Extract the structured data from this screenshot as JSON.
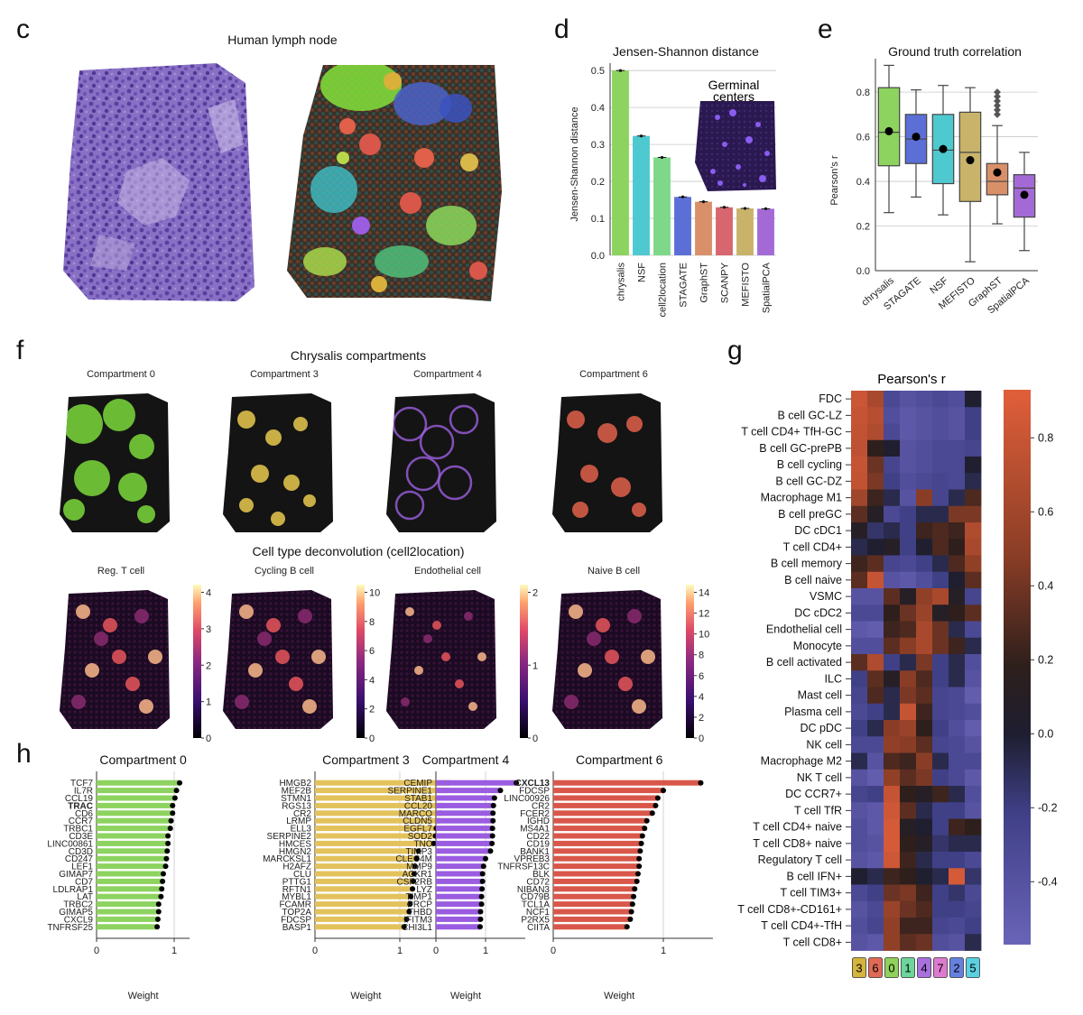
{
  "panels": {
    "c": "c",
    "d": "d",
    "e": "e",
    "f": "f",
    "g": "g",
    "h": "h"
  },
  "panel_c": {
    "title": "Human lymph node"
  },
  "colors": {
    "green": "#8dd35f",
    "blue": "#5b6fd6",
    "teal": "#4ec9cf",
    "ltgreen": "#7fd88a",
    "orange": "#d99068",
    "red": "#d8666f",
    "olive": "#c9b36a",
    "purple": "#a36ad6",
    "gold": "#e3c25c",
    "redbar": "#d9574a",
    "violet": "#9a5ce0"
  },
  "chart_data": [
    {
      "id": "d",
      "type": "bar",
      "title": "Jensen-Shannon distance",
      "ylabel": "Jensen-Shannon distance",
      "ylim": [
        0,
        0.52
      ],
      "yticks": [
        "0.0",
        "0.1",
        "0.2",
        "0.3",
        "0.4",
        "0.5"
      ],
      "categories": [
        "chrysalis",
        "NSF",
        "cell2location",
        "STAGATE",
        "GraphST",
        "SCANPY",
        "MEFISTO",
        "SpatialPCA"
      ],
      "values": [
        0.5,
        0.323,
        0.265,
        0.158,
        0.145,
        0.13,
        0.127,
        0.126
      ],
      "inset_label": [
        "Germinal",
        "centers"
      ]
    },
    {
      "id": "e",
      "type": "box",
      "title": "Ground truth correlation",
      "ylabel": "Pearson's r",
      "ylim": [
        0,
        0.95
      ],
      "yticks": [
        "0.0",
        "0.2",
        "0.4",
        "0.6",
        "0.8"
      ],
      "categories": [
        "chrysalis",
        "STAGATE",
        "NSF",
        "MEFISTO",
        "GraphST",
        "SpatialPCA"
      ],
      "boxes": [
        {
          "q1": 0.47,
          "median": 0.62,
          "q3": 0.82,
          "wlo": 0.26,
          "whi": 0.92,
          "mean": 0.625
        },
        {
          "q1": 0.48,
          "median": 0.59,
          "q3": 0.7,
          "wlo": 0.33,
          "whi": 0.81,
          "mean": 0.6
        },
        {
          "q1": 0.39,
          "median": 0.54,
          "q3": 0.7,
          "wlo": 0.25,
          "whi": 0.83,
          "mean": 0.545
        },
        {
          "q1": 0.31,
          "median": 0.53,
          "q3": 0.71,
          "wlo": 0.04,
          "whi": 0.82,
          "mean": 0.495
        },
        {
          "q1": 0.34,
          "median": 0.4,
          "q3": 0.48,
          "wlo": 0.21,
          "whi": 0.65,
          "mean": 0.44,
          "fliers": [
            0.7,
            0.72,
            0.74,
            0.76,
            0.78,
            0.8
          ]
        },
        {
          "q1": 0.24,
          "median": 0.37,
          "q3": 0.43,
          "wlo": 0.09,
          "whi": 0.53,
          "mean": 0.34
        }
      ]
    },
    {
      "id": "g",
      "type": "heatmap",
      "title": "Pearson's r",
      "rows": [
        "FDC",
        "B cell GC-LZ",
        "T cell CD4+ TfH-GC",
        "B cell GC-prePB",
        "B cell cycling",
        "B cell GC-DZ",
        "Macrophage M1",
        "B cell preGC",
        "DC cDC1",
        "T cell CD4+",
        "B cell memory",
        "B cell naive",
        "VSMC",
        "DC cDC2",
        "Endothelial cell",
        "Monocyte",
        "B cell activated",
        "ILC",
        "Mast cell",
        "Plasma cell",
        "DC pDC",
        "NK cell",
        "Macrophage M2",
        "NK T cell",
        "DC CCR7+",
        "T cell TfR",
        "T cell CD4+ naive",
        "T cell CD8+ naive",
        "Regulatory T cell",
        "B cell IFN+",
        "T cell TIM3+",
        "T cell CD8+-CD161+",
        "T cell CD4+-TfH",
        "T cell CD8+"
      ],
      "columns": [
        "3",
        "6",
        "0",
        "1",
        "4",
        "7",
        "2",
        "5"
      ],
      "column_colors": [
        "#d4b43c",
        "#e06a55",
        "#8fd15a",
        "#6cd69a",
        "#a970e0",
        "#de7ad0",
        "#6680e0",
        "#5ad0e0"
      ],
      "values": [
        [
          0.78,
          0.55,
          -0.3,
          -0.4,
          -0.35,
          -0.3,
          -0.35,
          -0.05
        ],
        [
          0.75,
          0.65,
          -0.35,
          -0.45,
          -0.4,
          -0.35,
          -0.4,
          -0.2
        ],
        [
          0.72,
          0.6,
          -0.3,
          -0.45,
          -0.4,
          -0.35,
          -0.4,
          -0.2
        ],
        [
          0.7,
          0.05,
          -0.05,
          -0.4,
          -0.35,
          -0.3,
          -0.3,
          -0.25
        ],
        [
          0.75,
          0.25,
          -0.25,
          -0.4,
          -0.35,
          -0.3,
          -0.3,
          -0.05
        ],
        [
          0.72,
          0.3,
          -0.2,
          -0.35,
          -0.3,
          -0.25,
          -0.3,
          -0.1
        ],
        [
          0.5,
          0.1,
          -0.1,
          -0.4,
          0.35,
          -0.25,
          -0.1,
          0.15
        ],
        [
          0.2,
          0.0,
          -0.3,
          -0.2,
          -0.1,
          -0.1,
          0.3,
          0.3
        ],
        [
          0.0,
          -0.15,
          -0.1,
          -0.2,
          0.1,
          0.15,
          0.1,
          0.6
        ],
        [
          -0.1,
          -0.05,
          0.0,
          -0.2,
          -0.05,
          0.15,
          0.05,
          0.55
        ],
        [
          0.1,
          0.2,
          -0.25,
          -0.3,
          -0.2,
          -0.1,
          0.15,
          0.4
        ],
        [
          0.2,
          0.75,
          -0.4,
          -0.45,
          -0.35,
          -0.2,
          -0.05,
          0.2
        ],
        [
          -0.4,
          -0.4,
          0.2,
          0.0,
          0.4,
          0.55,
          0.0,
          -0.25
        ],
        [
          -0.3,
          -0.3,
          0.05,
          0.25,
          0.45,
          0.0,
          0.05,
          0.2
        ],
        [
          -0.45,
          -0.5,
          0.1,
          0.15,
          0.55,
          0.25,
          -0.1,
          -0.3
        ],
        [
          -0.35,
          -0.35,
          0.2,
          0.35,
          0.55,
          0.25,
          0.1,
          -0.1
        ],
        [
          0.2,
          0.6,
          -0.2,
          -0.1,
          0.3,
          -0.2,
          -0.1,
          -0.35
        ],
        [
          -0.2,
          0.2,
          0.0,
          0.35,
          0.15,
          -0.2,
          -0.1,
          -0.4
        ],
        [
          -0.25,
          0.15,
          -0.1,
          0.3,
          0.2,
          -0.25,
          -0.3,
          -0.5
        ],
        [
          -0.3,
          -0.2,
          -0.1,
          0.75,
          0.1,
          -0.25,
          -0.3,
          -0.35
        ],
        [
          -0.2,
          -0.1,
          0.35,
          0.45,
          0.05,
          -0.2,
          -0.35,
          -0.5
        ],
        [
          -0.3,
          -0.3,
          0.4,
          0.35,
          0.2,
          -0.25,
          -0.3,
          -0.4
        ],
        [
          -0.1,
          -0.4,
          0.15,
          0.1,
          0.35,
          -0.1,
          -0.3,
          -0.3
        ],
        [
          -0.4,
          -0.5,
          0.4,
          0.2,
          0.3,
          -0.2,
          -0.3,
          -0.45
        ],
        [
          -0.25,
          -0.2,
          0.75,
          0.05,
          0.0,
          0.1,
          -0.1,
          -0.35
        ],
        [
          -0.4,
          -0.45,
          0.8,
          0.2,
          -0.1,
          -0.2,
          -0.2,
          -0.4
        ],
        [
          -0.35,
          -0.45,
          0.85,
          0.0,
          -0.05,
          -0.2,
          0.1,
          0.05
        ],
        [
          -0.35,
          -0.4,
          0.85,
          0.05,
          0.0,
          -0.15,
          -0.1,
          -0.1
        ],
        [
          -0.4,
          -0.45,
          0.8,
          0.1,
          -0.1,
          -0.2,
          -0.2,
          -0.3
        ],
        [
          -0.05,
          -0.1,
          0.1,
          0.05,
          -0.05,
          -0.1,
          0.85,
          -0.15
        ],
        [
          -0.3,
          -0.2,
          0.25,
          0.3,
          0.1,
          -0.2,
          -0.15,
          -0.3
        ],
        [
          -0.4,
          -0.3,
          0.45,
          0.25,
          0.15,
          -0.2,
          -0.2,
          -0.25
        ],
        [
          -0.35,
          -0.25,
          0.4,
          0.1,
          0.1,
          -0.25,
          -0.3,
          -0.2
        ],
        [
          -0.4,
          -0.45,
          0.4,
          0.2,
          0.25,
          -0.35,
          -0.4,
          -0.1
        ]
      ],
      "colorbar_ticks": [
        "-0.4",
        "-0.2",
        "0.0",
        "0.2",
        "0.4",
        "0.6",
        "0.8"
      ],
      "vmin": -0.57,
      "vmax": 0.93
    },
    {
      "id": "h0",
      "type": "hbar",
      "title": "Compartment 0",
      "xlabel": "Weight",
      "xticks": [
        "0",
        "1"
      ],
      "xlim": [
        0,
        1.2
      ],
      "color_key": "green",
      "bold": "TRAC",
      "categories": [
        "TCF7",
        "IL7R",
        "CCL19",
        "TRAC",
        "CD6",
        "CCR7",
        "TRBC1",
        "CD3E",
        "LINC00861",
        "CD3D",
        "CD247",
        "LEF1",
        "GIMAP7",
        "CD7",
        "LDLRAP1",
        "LAT",
        "TRBC2",
        "GIMAP5",
        "CXCL9",
        "TNFRSF25"
      ],
      "values": [
        1.07,
        1.03,
        1.01,
        0.98,
        0.98,
        0.96,
        0.95,
        0.92,
        0.92,
        0.91,
        0.9,
        0.89,
        0.86,
        0.85,
        0.84,
        0.83,
        0.8,
        0.8,
        0.79,
        0.78
      ]
    },
    {
      "id": "h3",
      "type": "hbar",
      "title": "Compartment 3",
      "xlabel": "Weight",
      "xticks": [
        "0",
        "1"
      ],
      "xlim": [
        0,
        1.7
      ],
      "color_key": "gold",
      "categories": [
        "HMGB2",
        "MEF2B",
        "STMN1",
        "RGS13",
        "CR2",
        "LRMP",
        "ELL3",
        "SERPINE2",
        "HMCES",
        "HMGN2",
        "MARCKSL1",
        "H2AFZ",
        "CLU",
        "PTTG1",
        "RFTN1",
        "MYBL1",
        "FCAMR",
        "TOP2A",
        "FDCSP",
        "BASP1"
      ],
      "values": [
        1.57,
        1.55,
        1.52,
        1.5,
        1.48,
        1.46,
        1.43,
        1.42,
        1.4,
        1.22,
        1.2,
        1.18,
        1.17,
        1.16,
        1.15,
        1.13,
        1.12,
        1.11,
        1.08,
        1.05
      ]
    },
    {
      "id": "h4",
      "type": "hbar",
      "title": "Compartment 4",
      "xlabel": "Weight",
      "xticks": [
        "0",
        "1"
      ],
      "xlim": [
        0,
        1.8
      ],
      "color_key": "violet",
      "categories": [
        "CEMIP",
        "SERPINE1",
        "STAB1",
        "CCL20",
        "MARCO",
        "CLDN5",
        "EGFL7",
        "SOD2",
        "TNC",
        "TIMP3",
        "CLEC4M",
        "MMP9",
        "ACKR1",
        "CSF2RB",
        "LYZ",
        "TIMP1",
        "PRCP",
        "THBD",
        "IFITM3",
        "CHI3L1"
      ],
      "values": [
        1.62,
        1.3,
        1.18,
        1.16,
        1.15,
        1.15,
        1.14,
        1.14,
        1.13,
        1.1,
        1.0,
        0.96,
        0.94,
        0.94,
        0.93,
        0.92,
        0.92,
        0.9,
        0.9,
        0.89
      ]
    },
    {
      "id": "h6",
      "type": "hbar",
      "title": "Compartment 6",
      "xlabel": "Weight",
      "xticks": [
        "0",
        "1"
      ],
      "xlim": [
        0,
        1.45
      ],
      "color_key": "redbar",
      "bold": "CXCL13",
      "categories": [
        "CXCL13",
        "FDCSP",
        "LINC00926",
        "CR2",
        "FCER2",
        "IGHD",
        "MS4A1",
        "CD22",
        "CD19",
        "BANK1",
        "VPREB3",
        "TNFRSF13C",
        "BLK",
        "CD72",
        "NIBAN3",
        "CD79B",
        "TCL1A",
        "NCF1",
        "P2RX5",
        "CIITA"
      ],
      "values": [
        1.34,
        1.0,
        0.95,
        0.93,
        0.9,
        0.85,
        0.83,
        0.81,
        0.8,
        0.79,
        0.78,
        0.78,
        0.77,
        0.76,
        0.74,
        0.73,
        0.72,
        0.71,
        0.7,
        0.67
      ]
    }
  ],
  "panel_f": {
    "title_top": "Chrysalis compartments",
    "title_bottom": "Cell type deconvolution (cell2location)",
    "compartments": [
      {
        "label": "Compartment 0",
        "color": "#7ad83a"
      },
      {
        "label": "Compartment 3",
        "color": "#e8c94e"
      },
      {
        "label": "Compartment 4",
        "color": "#9c5fe0"
      },
      {
        "label": "Compartment 6",
        "color": "#e0604a"
      }
    ],
    "cells": [
      {
        "label": "Reg. T cell",
        "ticks": [
          "0",
          "1",
          "2",
          "3",
          "4"
        ]
      },
      {
        "label": "Cycling B cell",
        "ticks": [
          "0",
          "2",
          "4",
          "6",
          "8",
          "10"
        ]
      },
      {
        "label": "Endothelial cell",
        "ticks": [
          "0",
          "1",
          "2"
        ]
      },
      {
        "label": "Naive B cell",
        "ticks": [
          "0",
          "2",
          "4",
          "6",
          "8",
          "10",
          "12",
          "14"
        ]
      }
    ]
  }
}
